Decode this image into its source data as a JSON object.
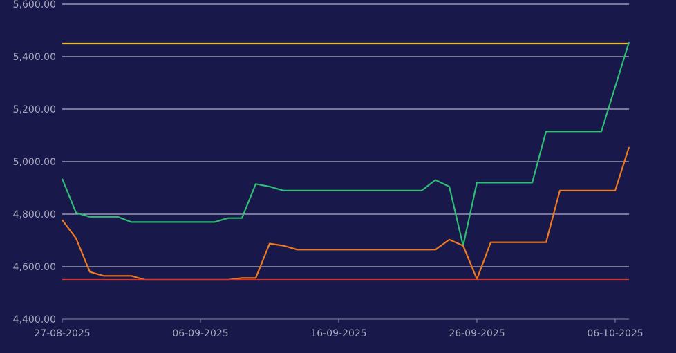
{
  "chart_data": {
    "type": "line",
    "title": "",
    "xlabel": "",
    "ylabel": "",
    "x_ticks": [
      "27-08-2025",
      "06-09-2025",
      "16-09-2025",
      "26-09-2025",
      "06-10-2025"
    ],
    "y_ticks": [
      "4,400.00",
      "4,600.00",
      "4,800.00",
      "5,000.00",
      "5,200.00",
      "5,400.00",
      "5,600.00"
    ],
    "ylim": [
      4400,
      5600
    ],
    "grid": true,
    "legend": "none",
    "x": [
      "27-08-2025",
      "28-08-2025",
      "29-08-2025",
      "30-08-2025",
      "31-08-2025",
      "01-09-2025",
      "02-09-2025",
      "03-09-2025",
      "04-09-2025",
      "05-09-2025",
      "06-09-2025",
      "07-09-2025",
      "08-09-2025",
      "09-09-2025",
      "10-09-2025",
      "11-09-2025",
      "12-09-2025",
      "13-09-2025",
      "14-09-2025",
      "15-09-2025",
      "16-09-2025",
      "17-09-2025",
      "18-09-2025",
      "19-09-2025",
      "20-09-2025",
      "21-09-2025",
      "22-09-2025",
      "23-09-2025",
      "24-09-2025",
      "25-09-2025",
      "26-09-2025",
      "27-09-2025",
      "28-09-2025",
      "29-09-2025",
      "30-09-2025",
      "01-10-2025",
      "02-10-2025",
      "03-10-2025",
      "04-10-2025",
      "05-10-2025",
      "06-10-2025",
      "07-10-2025"
    ],
    "series": [
      {
        "color": "#e8b830",
        "values": [
          5450,
          5450,
          5450,
          5450,
          5450,
          5450,
          5450,
          5450,
          5450,
          5450,
          5450,
          5450,
          5450,
          5450,
          5450,
          5450,
          5450,
          5450,
          5450,
          5450,
          5450,
          5450,
          5450,
          5450,
          5450,
          5450,
          5450,
          5450,
          5450,
          5450,
          5450,
          5450,
          5450,
          5450,
          5450,
          5450,
          5450,
          5450,
          5450,
          5450,
          5450,
          5450
        ]
      },
      {
        "color": "#2ebd72",
        "values": [
          4935,
          4805,
          4790,
          4790,
          4790,
          4770,
          4770,
          4770,
          4770,
          4770,
          4770,
          4770,
          4785,
          4785,
          4915,
          4905,
          4890,
          4890,
          4890,
          4890,
          4890,
          4890,
          4890,
          4890,
          4890,
          4890,
          4890,
          4930,
          4905,
          4680,
          4920,
          4920,
          4920,
          4920,
          4920,
          5115,
          5115,
          5115,
          5115,
          5115,
          5285,
          5455
        ]
      },
      {
        "color": "#f07a1e",
        "values": [
          4778,
          4708,
          4580,
          4565,
          4565,
          4565,
          4550,
          4550,
          4550,
          4550,
          4550,
          4550,
          4550,
          4557,
          4557,
          4688,
          4680,
          4665,
          4665,
          4665,
          4665,
          4665,
          4665,
          4665,
          4665,
          4665,
          4665,
          4665,
          4703,
          4680,
          4553,
          4693,
          4693,
          4693,
          4693,
          4693,
          4890,
          4890,
          4890,
          4890,
          4890,
          5055
        ]
      },
      {
        "color": "#c83a3a",
        "values": [
          4550,
          4550,
          4550,
          4550,
          4550,
          4550,
          4550,
          4550,
          4550,
          4550,
          4550,
          4550,
          4550,
          4550,
          4550,
          4550,
          4550,
          4550,
          4550,
          4550,
          4550,
          4550,
          4550,
          4550,
          4550,
          4550,
          4550,
          4550,
          4550,
          4550,
          4550,
          4550,
          4550,
          4550,
          4550,
          4550,
          4550,
          4550,
          4550,
          4550,
          4550,
          4550
        ]
      }
    ]
  }
}
